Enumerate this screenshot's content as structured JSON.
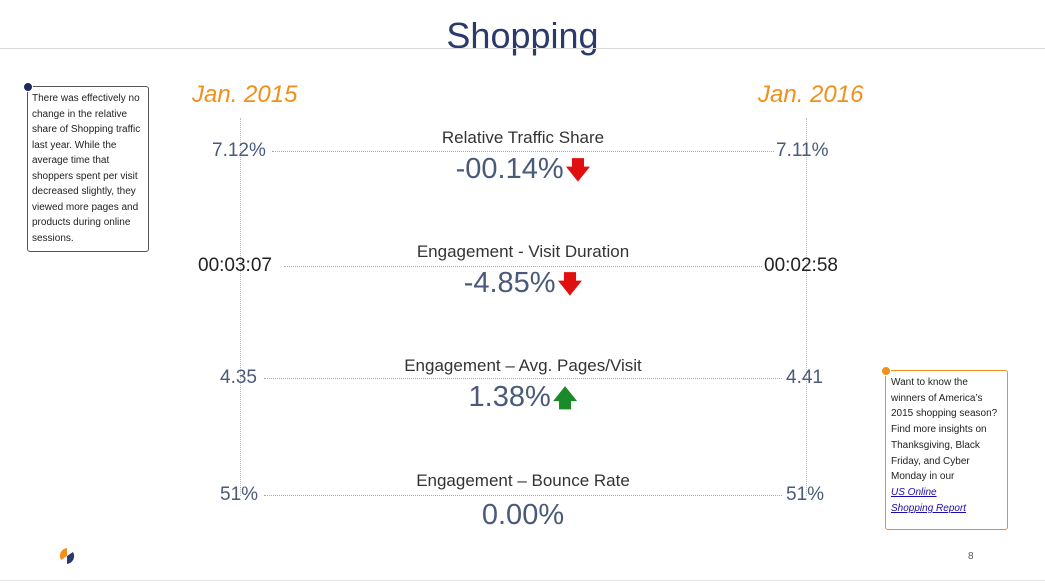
{
  "header": {
    "title": "Shopping"
  },
  "years": {
    "left": "Jan. 2015",
    "right": "Jan. 2016"
  },
  "metrics": [
    {
      "label": "Relative Traffic Share",
      "value": "-00.14%",
      "trend": "down",
      "left": "7.12%",
      "right": "7.11%"
    },
    {
      "label": "Engagement - Visit Duration",
      "value": "-4.85%",
      "trend": "down",
      "left": "00:03:07",
      "right": "00:02:58"
    },
    {
      "label": "Engagement – Avg. Pages/Visit",
      "value": "1.38%",
      "trend": "up",
      "left": "4.35",
      "right": "4.41"
    },
    {
      "label": "Engagement – Bounce Rate",
      "value": "0.00%",
      "trend": "none",
      "left": "51%",
      "right": "51%"
    }
  ],
  "notes": {
    "left": "There was effectively no change in the relative share of Shopping traffic last year. While the average time that shoppers spent per visit decreased slightly, they viewed more pages and products during online sessions.",
    "right_text": "Want to know the winners of America’s 2015 shopping season? Find more insights on Thanksgiving, Black Friday, and Cyber Monday in our",
    "right_link_1": "US Online",
    "right_link_2": "Shopping Report"
  },
  "footer": {
    "page_number": "8"
  },
  "icons": {
    "down": "arrow-down-icon",
    "up": "arrow-up-icon",
    "logo": "similarweb-logo-icon"
  },
  "colors": {
    "accent": "#f0901a",
    "title": "#2b3a6b",
    "down": "#e01010",
    "up": "#1a8a2a"
  }
}
